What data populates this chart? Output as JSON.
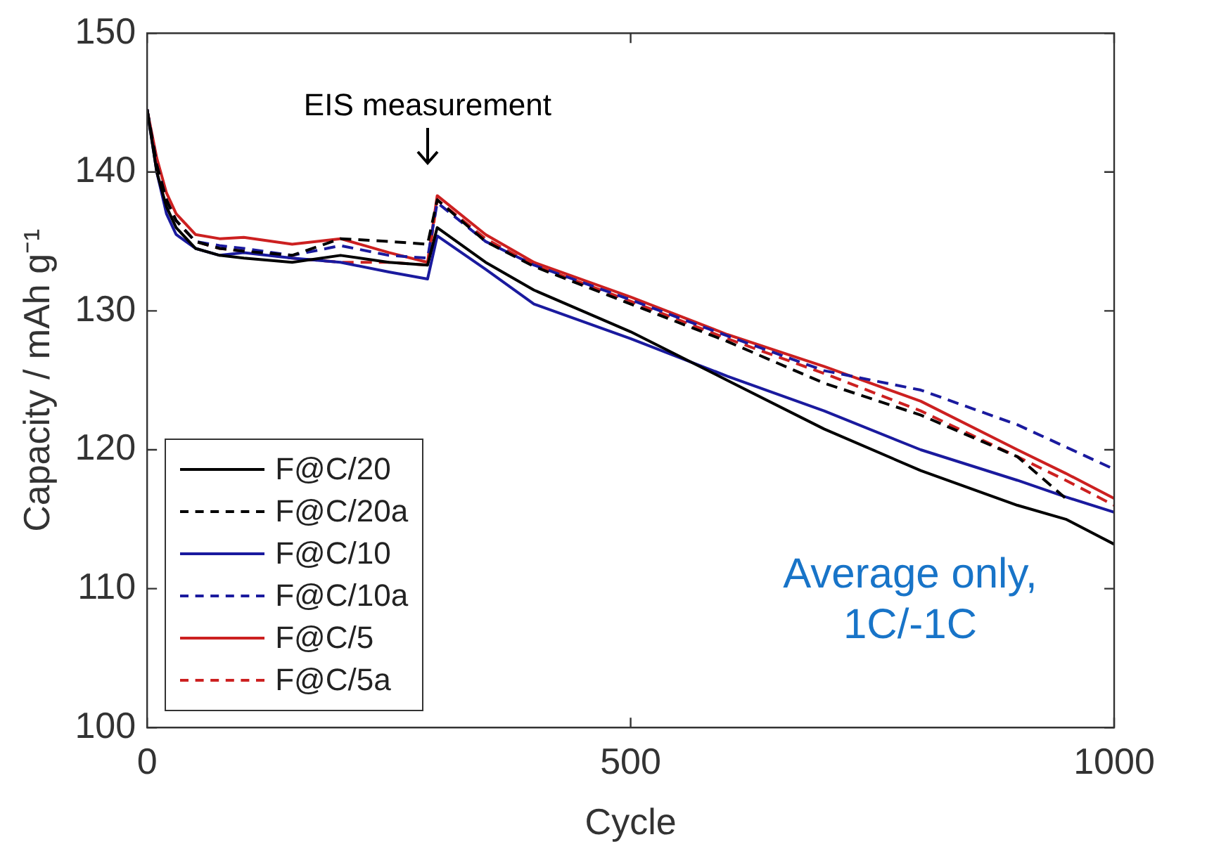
{
  "chart_data": {
    "type": "line",
    "xlabel": "Cycle",
    "ylabel": "Capacity / mAh g⁻¹",
    "x": [
      0,
      10,
      20,
      30,
      50,
      75,
      100,
      150,
      200,
      250,
      290,
      300,
      350,
      400,
      500,
      600,
      700,
      800,
      900,
      950,
      1000
    ],
    "xlim": [
      0,
      1000
    ],
    "xticks": [
      0,
      500,
      1000
    ],
    "ylim": [
      100,
      150
    ],
    "yticks": [
      100,
      110,
      120,
      130,
      140,
      150
    ],
    "grid": false,
    "legend": "left",
    "marker": "none",
    "series": [
      {
        "name": "F@C/20",
        "color": "#000000",
        "line_style": "solid",
        "values": [
          144.5,
          140,
          137.5,
          136,
          134.5,
          134,
          133.8,
          133.5,
          134,
          133.5,
          133.3,
          136,
          133.5,
          131.5,
          128.5,
          125,
          121.5,
          118.5,
          116,
          115,
          113.2
        ]
      },
      {
        "name": "F@C/20a",
        "color": "#000000",
        "line_style": "dashed",
        "values": [
          144.5,
          140.5,
          138,
          136.5,
          135,
          134.5,
          134.3,
          134,
          135.2,
          135,
          134.8,
          138,
          135,
          133.2,
          130.5,
          127.8,
          124.8,
          122.5,
          119.5,
          116.5,
          null
        ]
      },
      {
        "name": "F@C/10",
        "color": "#1a1a9e",
        "line_style": "solid",
        "values": [
          144.5,
          140,
          137,
          135.5,
          134.5,
          134,
          134.2,
          133.8,
          133.5,
          132.8,
          132.3,
          135.4,
          133,
          130.5,
          128,
          125.3,
          122.8,
          120,
          117.8,
          116.6,
          115.5
        ]
      },
      {
        "name": "F@C/10a",
        "color": "#1a1a9e",
        "line_style": "dashed",
        "values": [
          144.5,
          140.5,
          138,
          136.5,
          135,
          134.7,
          134.5,
          134,
          134.7,
          134,
          133.8,
          137.8,
          135,
          133.3,
          130.8,
          128.2,
          125.7,
          124.3,
          121.8,
          120.2,
          118.6
        ]
      },
      {
        "name": "F@C/5",
        "color": "#cc2020",
        "line_style": "solid",
        "values": [
          144.5,
          141,
          138.5,
          137,
          135.5,
          135.2,
          135.3,
          134.8,
          135.2,
          134.2,
          133.5,
          138.3,
          135.5,
          133.5,
          131,
          128.3,
          126,
          123.5,
          120,
          118.3,
          116.5
        ]
      },
      {
        "name": "F@C/5a",
        "color": "#cc2020",
        "line_style": "dashed",
        "values": [
          144.5,
          140.5,
          138,
          136.5,
          135,
          134.5,
          134.3,
          133.8,
          133.5,
          133.5,
          133.3,
          138,
          135.2,
          133.3,
          130.7,
          128,
          125.5,
          122.8,
          119.5,
          117.8,
          116
        ]
      }
    ],
    "annotations": [
      "EIS measurement",
      "Average only, 1C/-1C"
    ]
  }
}
